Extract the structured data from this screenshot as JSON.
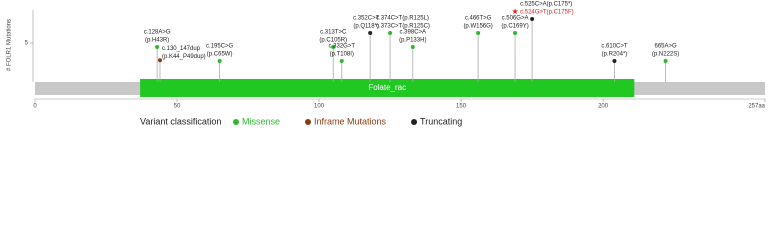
{
  "chart_data": {
    "type": "lollipop",
    "y_label": "# FOLR1 Mutations",
    "xlim": [
      0,
      257
    ],
    "xticks": [
      0,
      50,
      100,
      150,
      200,
      {
        "value": 257,
        "label": "257aa"
      }
    ],
    "ylim": [
      0,
      9
    ],
    "yticks": [
      5
    ],
    "protein_color": "#c8c8c8",
    "domain": {
      "name": "Folate_rac",
      "start": 37,
      "end": 211,
      "color": "#22c822"
    },
    "legend_title": "Variant classification",
    "classes": [
      {
        "name": "Missense",
        "color": "#2fb82f"
      },
      {
        "name": "Inframe Mutations",
        "color": "#8b3a10"
      },
      {
        "name": "Truncating",
        "color": "#222222"
      }
    ],
    "mutations": [
      {
        "position": 43,
        "count": 4.5,
        "class": 0,
        "lines": [
          {
            "text": "c.128A>G",
            "color": "#222222"
          },
          {
            "text": "(p.H43R)",
            "color": "#222222"
          }
        ]
      },
      {
        "position": 44,
        "count": 2.8,
        "class": 1,
        "lines": [
          {
            "text": "c.130_147dup",
            "color": "#222222"
          },
          {
            "text": "(p.K44_P49dup)",
            "color": "#222222"
          }
        ]
      },
      {
        "position": 65,
        "count": 2.7,
        "class": 0,
        "lines": [
          {
            "text": "c.195C>G",
            "color": "#222222"
          },
          {
            "text": "(p.C65W)",
            "color": "#222222"
          }
        ]
      },
      {
        "position": 105,
        "count": 4.5,
        "class": 0,
        "lines": [
          {
            "text": "c.313T>C",
            "color": "#222222"
          },
          {
            "text": "(p.C105R)",
            "color": "#222222"
          }
        ]
      },
      {
        "position": 108,
        "count": 2.7,
        "class": 0,
        "lines": [
          {
            "text": "c.332G>T",
            "color": "#222222"
          },
          {
            "text": "(p.T108I)",
            "color": "#222222"
          }
        ]
      },
      {
        "position": 118,
        "count": 6.3,
        "class": 2,
        "lines": [
          {
            "text": "c.352C>T",
            "color": "#222222"
          },
          {
            "text": "(p.Q118*)",
            "color": "#222222"
          }
        ]
      },
      {
        "position": 125,
        "count": 6.3,
        "class": 0,
        "lines": [
          {
            "text": "c.374C>T(p.R125L)",
            "color": "#222222"
          },
          {
            "text": "c.373C>T(p.R125C)",
            "color": "#222222"
          }
        ]
      },
      {
        "position": 133,
        "count": 4.5,
        "class": 0,
        "lines": [
          {
            "text": "c.398C>A",
            "color": "#222222"
          },
          {
            "text": "(p.P133H)",
            "color": "#222222"
          }
        ]
      },
      {
        "position": 156,
        "count": 6.3,
        "class": 0,
        "lines": [
          {
            "text": "c.466T>G",
            "color": "#222222"
          },
          {
            "text": "(p.W156G)",
            "color": "#222222"
          }
        ]
      },
      {
        "position": 169,
        "count": 6.3,
        "class": 0,
        "lines": [
          {
            "text": "c.506G>A",
            "color": "#222222"
          },
          {
            "text": "(p.C169Y)",
            "color": "#222222"
          }
        ]
      },
      {
        "position": 175,
        "count": 8.1,
        "class": 2,
        "lines": [
          {
            "text": "c.525C>A(p.C175*)",
            "color": "#222222"
          },
          {
            "text": "c.524G>T(p.C175F)",
            "color": "#e02020"
          }
        ]
      },
      {
        "position": 204,
        "count": 2.7,
        "class": 2,
        "lines": [
          {
            "text": "c.610C>T",
            "color": "#222222"
          },
          {
            "text": "(p.R204*)",
            "color": "#222222"
          }
        ]
      },
      {
        "position": 222,
        "count": 2.7,
        "class": 0,
        "lines": [
          {
            "text": "665A>G",
            "color": "#222222"
          },
          {
            "text": "(p.N222S)",
            "color": "#222222"
          }
        ]
      }
    ]
  }
}
